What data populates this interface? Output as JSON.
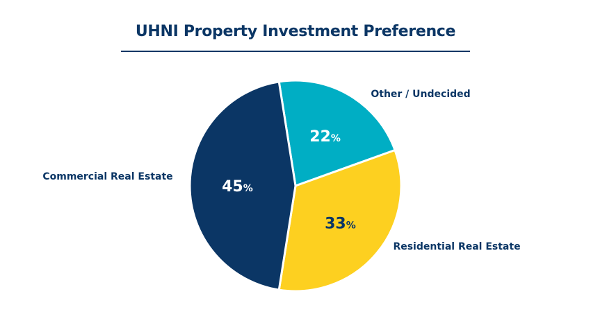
{
  "chart_data": {
    "type": "pie",
    "title": "UHNI Property Investment Preference",
    "slices": [
      {
        "label": "Other / Undecided",
        "value": 22,
        "display": "22",
        "color": "#00aec4",
        "text_color": "#ffffff"
      },
      {
        "label": "Residential Real Estate",
        "value": 33,
        "display": "33",
        "color": "#fdd020",
        "text_color": "#0b3665"
      },
      {
        "label": "Commercial Real Estate",
        "value": 45,
        "display": "45",
        "color": "#0b3665",
        "text_color": "#ffffff"
      }
    ],
    "unit": "%"
  }
}
